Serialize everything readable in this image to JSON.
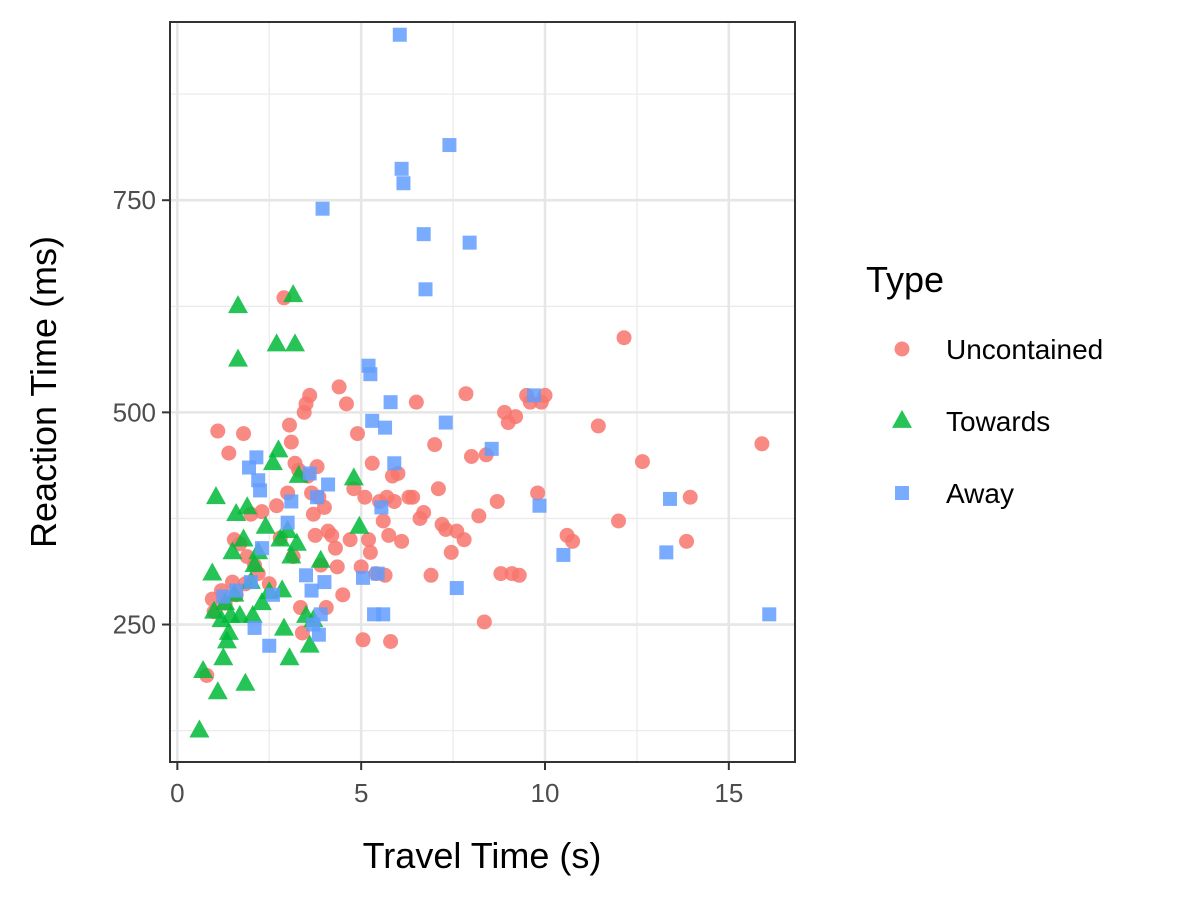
{
  "chart_data": {
    "type": "scatter",
    "xlabel": "Travel Time (s)",
    "ylabel": "Reaction Time (ms)",
    "xlim": [
      -0.2,
      16.8
    ],
    "ylim": [
      88,
      960
    ],
    "x_ticks": [
      0,
      5,
      10,
      15
    ],
    "y_ticks": [
      250,
      500,
      750
    ],
    "grid": true,
    "legend_title": "Type",
    "legend_position": "right",
    "series": [
      {
        "name": "Uncontained",
        "marker": "circle",
        "color": "#F8766D",
        "points": [
          [
            0.8,
            190
          ],
          [
            0.95,
            280
          ],
          [
            1.0,
            265
          ],
          [
            1.1,
            478
          ],
          [
            1.2,
            290
          ],
          [
            1.3,
            275
          ],
          [
            1.4,
            452
          ],
          [
            1.5,
            300
          ],
          [
            1.55,
            350
          ],
          [
            1.6,
            285
          ],
          [
            1.7,
            345
          ],
          [
            1.8,
            475
          ],
          [
            1.85,
            298
          ],
          [
            1.9,
            330
          ],
          [
            2.0,
            380
          ],
          [
            2.1,
            320
          ],
          [
            2.2,
            310
          ],
          [
            2.3,
            383
          ],
          [
            2.5,
            298
          ],
          [
            2.7,
            390
          ],
          [
            2.8,
            352
          ],
          [
            2.9,
            635
          ],
          [
            3.0,
            405
          ],
          [
            3.05,
            485
          ],
          [
            3.1,
            465
          ],
          [
            3.15,
            330
          ],
          [
            3.2,
            440
          ],
          [
            3.3,
            432
          ],
          [
            3.35,
            270
          ],
          [
            3.4,
            240
          ],
          [
            3.45,
            500
          ],
          [
            3.5,
            510
          ],
          [
            3.55,
            425
          ],
          [
            3.6,
            520
          ],
          [
            3.65,
            405
          ],
          [
            3.7,
            380
          ],
          [
            3.75,
            355
          ],
          [
            3.8,
            436
          ],
          [
            3.85,
            400
          ],
          [
            3.9,
            320
          ],
          [
            4.0,
            388
          ],
          [
            4.05,
            270
          ],
          [
            4.1,
            360
          ],
          [
            4.2,
            355
          ],
          [
            4.3,
            340
          ],
          [
            4.35,
            318
          ],
          [
            4.4,
            530
          ],
          [
            4.5,
            285
          ],
          [
            4.6,
            510
          ],
          [
            4.7,
            350
          ],
          [
            4.8,
            410
          ],
          [
            4.9,
            475
          ],
          [
            5.0,
            318
          ],
          [
            5.05,
            232
          ],
          [
            5.1,
            400
          ],
          [
            5.2,
            350
          ],
          [
            5.25,
            335
          ],
          [
            5.3,
            440
          ],
          [
            5.4,
            310
          ],
          [
            5.5,
            395
          ],
          [
            5.6,
            372
          ],
          [
            5.65,
            308
          ],
          [
            5.7,
            400
          ],
          [
            5.75,
            355
          ],
          [
            5.8,
            230
          ],
          [
            5.85,
            425
          ],
          [
            5.9,
            395
          ],
          [
            6.0,
            428
          ],
          [
            6.1,
            348
          ],
          [
            6.3,
            400
          ],
          [
            6.4,
            400
          ],
          [
            6.5,
            512
          ],
          [
            6.6,
            375
          ],
          [
            6.7,
            382
          ],
          [
            6.9,
            308
          ],
          [
            7.0,
            462
          ],
          [
            7.1,
            410
          ],
          [
            7.2,
            368
          ],
          [
            7.3,
            362
          ],
          [
            7.45,
            335
          ],
          [
            7.6,
            360
          ],
          [
            7.8,
            350
          ],
          [
            7.85,
            522
          ],
          [
            8.0,
            448
          ],
          [
            8.2,
            378
          ],
          [
            8.35,
            253
          ],
          [
            8.4,
            450
          ],
          [
            8.7,
            395
          ],
          [
            8.8,
            310
          ],
          [
            8.9,
            500
          ],
          [
            9.0,
            488
          ],
          [
            9.1,
            310
          ],
          [
            9.2,
            495
          ],
          [
            9.3,
            308
          ],
          [
            9.5,
            520
          ],
          [
            9.6,
            512
          ],
          [
            9.8,
            405
          ],
          [
            9.9,
            512
          ],
          [
            10.0,
            520
          ],
          [
            10.6,
            355
          ],
          [
            10.75,
            348
          ],
          [
            11.45,
            484
          ],
          [
            12.0,
            372
          ],
          [
            12.15,
            588
          ],
          [
            12.65,
            442
          ],
          [
            13.85,
            348
          ],
          [
            13.95,
            400
          ],
          [
            15.9,
            463
          ]
        ]
      },
      {
        "name": "Towards",
        "marker": "triangle",
        "color": "#00BA38",
        "points": [
          [
            0.6,
            125
          ],
          [
            0.7,
            195
          ],
          [
            0.95,
            310
          ],
          [
            1.0,
            265
          ],
          [
            1.05,
            400
          ],
          [
            1.1,
            170
          ],
          [
            1.2,
            255
          ],
          [
            1.25,
            210
          ],
          [
            1.3,
            275
          ],
          [
            1.35,
            230
          ],
          [
            1.4,
            240
          ],
          [
            1.45,
            260
          ],
          [
            1.5,
            335
          ],
          [
            1.55,
            285
          ],
          [
            1.6,
            380
          ],
          [
            1.65,
            625
          ],
          [
            1.65,
            562
          ],
          [
            1.7,
            260
          ],
          [
            1.8,
            350
          ],
          [
            1.85,
            180
          ],
          [
            1.9,
            388
          ],
          [
            2.0,
            300
          ],
          [
            2.05,
            260
          ],
          [
            2.1,
            320
          ],
          [
            2.2,
            335
          ],
          [
            2.3,
            275
          ],
          [
            2.4,
            365
          ],
          [
            2.5,
            288
          ],
          [
            2.6,
            440
          ],
          [
            2.7,
            580
          ],
          [
            2.75,
            455
          ],
          [
            2.8,
            350
          ],
          [
            2.85,
            290
          ],
          [
            2.9,
            245
          ],
          [
            3.0,
            360
          ],
          [
            3.05,
            210
          ],
          [
            3.1,
            330
          ],
          [
            3.15,
            638
          ],
          [
            3.2,
            580
          ],
          [
            3.25,
            345
          ],
          [
            3.3,
            425
          ],
          [
            3.5,
            260
          ],
          [
            3.6,
            225
          ],
          [
            3.7,
            255
          ],
          [
            3.9,
            325
          ],
          [
            4.8,
            422
          ],
          [
            4.95,
            365
          ]
        ]
      },
      {
        "name": "Away",
        "marker": "square",
        "color": "#619CFF",
        "points": [
          [
            1.25,
            283
          ],
          [
            1.6,
            290
          ],
          [
            1.95,
            435
          ],
          [
            2.0,
            300
          ],
          [
            2.1,
            246
          ],
          [
            2.15,
            447
          ],
          [
            2.2,
            420
          ],
          [
            2.25,
            408
          ],
          [
            2.3,
            340
          ],
          [
            2.5,
            225
          ],
          [
            2.6,
            285
          ],
          [
            3.0,
            370
          ],
          [
            3.1,
            395
          ],
          [
            3.5,
            308
          ],
          [
            3.6,
            428
          ],
          [
            3.65,
            290
          ],
          [
            3.7,
            250
          ],
          [
            3.8,
            400
          ],
          [
            3.85,
            238
          ],
          [
            3.9,
            262
          ],
          [
            3.95,
            740
          ],
          [
            4.0,
            300
          ],
          [
            4.1,
            415
          ],
          [
            5.05,
            305
          ],
          [
            5.2,
            555
          ],
          [
            5.25,
            545
          ],
          [
            5.3,
            490
          ],
          [
            5.35,
            262
          ],
          [
            5.45,
            310
          ],
          [
            5.55,
            388
          ],
          [
            5.6,
            262
          ],
          [
            5.65,
            482
          ],
          [
            5.8,
            512
          ],
          [
            5.9,
            440
          ],
          [
            6.05,
            945
          ],
          [
            6.1,
            787
          ],
          [
            6.15,
            770
          ],
          [
            6.7,
            710
          ],
          [
            6.75,
            645
          ],
          [
            7.3,
            488
          ],
          [
            7.4,
            815
          ],
          [
            7.6,
            293
          ],
          [
            7.95,
            700
          ],
          [
            8.55,
            457
          ],
          [
            9.7,
            520
          ],
          [
            9.85,
            390
          ],
          [
            10.5,
            332
          ],
          [
            13.3,
            335
          ],
          [
            13.4,
            398
          ],
          [
            16.1,
            262
          ]
        ]
      }
    ]
  }
}
